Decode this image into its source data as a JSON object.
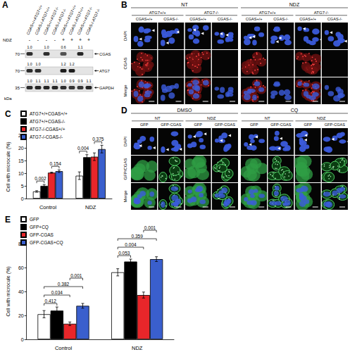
{
  "panels": {
    "A": {
      "label": "A",
      "lanes": [
        "CGAS+/+ATG7+/+",
        "CGAS-/-ATG7+/+",
        "CGAS+/+ATG7-/-",
        "CGAS-/-ATG7-/-",
        "CGAS+/+ATG7+/+",
        "CGAS-/-ATG7+/+",
        "CGAS+/+ATG7-/-",
        "CGAS-/-ATG7-/-"
      ],
      "treatment_label": "NDZ",
      "treatment": [
        "-",
        "-",
        "-",
        "-",
        "+",
        "+",
        "+",
        "+"
      ],
      "kda_label": "kDa",
      "blots": [
        {
          "name": "CGAS",
          "kda": "70",
          "quant": [
            "1.0",
            null,
            "1.0",
            null,
            "0.6",
            null,
            "1.1",
            null
          ]
        },
        {
          "name": "ATG7",
          "kda": "70",
          "quant": [
            "1.0",
            "1.0",
            null,
            null,
            "1.2",
            "1.2",
            null,
            null
          ]
        },
        {
          "name": "GAPDH",
          "kda": "35",
          "quant": [
            "1.0",
            "1.1",
            "1.1",
            "1.1",
            "1.0",
            "0.9",
            "0.9",
            "1.1"
          ]
        }
      ]
    },
    "B": {
      "label": "B",
      "rows": [
        "DAPI",
        "CGAS",
        "Merge"
      ],
      "groups": [
        {
          "title": "NT",
          "subgroups": [
            {
              "title": "ATG7+/+",
              "columns": [
                "CGAS+/+",
                "CGAS-/-"
              ]
            },
            {
              "title": "ATG7-/-",
              "columns": [
                "CGAS+/+",
                "CGAS-/-"
              ]
            }
          ]
        },
        {
          "title": "NDZ",
          "subgroups": [
            {
              "title": "ATG7+/+",
              "columns": [
                "CGAS+/+",
                "CGAS-/-"
              ]
            },
            {
              "title": "ATG7-/-",
              "columns": [
                "CGAS+/+",
                "CGAS-/-"
              ]
            }
          ]
        }
      ]
    },
    "D": {
      "label": "D",
      "rows": [
        "DAPI",
        "GFP/CGAS",
        "Merge"
      ],
      "groups": [
        {
          "title": "DMSO",
          "subgroups": [
            {
              "title": "NT",
              "columns": [
                "GFP",
                "GFP-CGAS"
              ]
            },
            {
              "title": "NDZ",
              "columns": [
                "GFP",
                "GFP-CGAS"
              ]
            }
          ]
        },
        {
          "title": "CQ",
          "subgroups": [
            {
              "title": "NT",
              "columns": [
                "GFP",
                "GFP-CGAS"
              ]
            },
            {
              "title": "NDZ",
              "columns": [
                "GFP",
                "GFP-CGAS"
              ]
            }
          ]
        }
      ]
    }
  },
  "chart_data": [
    {
      "type": "bar",
      "title": "C",
      "y_label": "Cell with microcule (%)",
      "categories": [
        "Control",
        "NDZ"
      ],
      "ylim": [
        0,
        25
      ],
      "yticks": [
        0,
        5,
        10,
        15,
        20,
        25
      ],
      "grid": false,
      "legend": "top-left",
      "series": [
        {
          "name": "ATG7+/+CGAS+/+",
          "color": "#ffffff",
          "values": [
            2.8,
            9.0
          ],
          "errors": [
            0.3,
            1.5
          ]
        },
        {
          "name": "ATG7+/+CGAS-/-",
          "color": "#000000",
          "values": [
            5.0,
            16.3
          ],
          "errors": [
            0.5,
            1.0
          ]
        },
        {
          "name": "ATG7-/-CGAS+/+",
          "color": "#e8262a",
          "values": [
            10.2,
            16.5
          ],
          "errors": [
            0.2,
            1.5
          ]
        },
        {
          "name": "ATG7-/-CGAS-/-",
          "color": "#3a5fcd",
          "values": [
            10.8,
            19.5
          ],
          "errors": [
            0.5,
            1.5
          ]
        }
      ],
      "annotations": [
        {
          "text": "0.002",
          "category": "Control",
          "between": [
            "ATG7+/+CGAS+/+",
            "ATG7+/+CGAS-/-"
          ]
        },
        {
          "text": "0.154",
          "category": "Control",
          "between": [
            "ATG7-/-CGAS+/+",
            "ATG7-/-CGAS-/-"
          ]
        },
        {
          "text": "0.004",
          "category": "NDZ",
          "between": [
            "ATG7+/+CGAS+/+",
            "ATG7+/+CGAS-/-"
          ]
        },
        {
          "text": "0.375",
          "category": "NDZ",
          "between": [
            "ATG7-/-CGAS+/+",
            "ATG7-/-CGAS-/-"
          ]
        }
      ]
    },
    {
      "type": "bar",
      "title": "E",
      "y_label": "Cell with microcule (%)",
      "categories": [
        "Control",
        "NDZ"
      ],
      "ylim": [
        0,
        80
      ],
      "yticks": [
        0,
        20,
        40,
        60,
        80
      ],
      "grid": false,
      "legend": "top-left",
      "series": [
        {
          "name": "GFP",
          "color": "#ffffff",
          "values": [
            21,
            56
          ],
          "errors": [
            3,
            3
          ]
        },
        {
          "name": "GFP+CQ",
          "color": "#000000",
          "values": [
            24,
            65
          ],
          "errors": [
            3,
            2
          ]
        },
        {
          "name": "GFP-CGAS",
          "color": "#e8262a",
          "values": [
            13,
            37
          ],
          "errors": [
            1.5,
            2.5
          ]
        },
        {
          "name": "GFP-CGAS+CQ",
          "color": "#3a5fcd",
          "values": [
            28,
            67
          ],
          "errors": [
            2,
            2
          ]
        }
      ],
      "annotations": [
        {
          "text": "0.412",
          "category": "Control",
          "between": [
            "GFP",
            "GFP+CQ"
          ]
        },
        {
          "text": "0.034",
          "category": "Control",
          "between": [
            "GFP",
            "GFP-CGAS"
          ]
        },
        {
          "text": "0.382",
          "category": "Control",
          "between": [
            "GFP",
            "GFP-CGAS+CQ"
          ]
        },
        {
          "text": "0.001",
          "category": "Control",
          "between": [
            "GFP-CGAS",
            "GFP-CGAS+CQ"
          ]
        },
        {
          "text": "0.053",
          "category": "NDZ",
          "between": [
            "GFP",
            "GFP+CQ"
          ]
        },
        {
          "text": "0.004",
          "category": "NDZ",
          "between": [
            "GFP",
            "GFP-CGAS"
          ]
        },
        {
          "text": "0.359",
          "category": "NDZ",
          "between": [
            "GFP",
            "GFP-CGAS+CQ"
          ]
        },
        {
          "text": "0.001",
          "category": "NDZ",
          "between": [
            "GFP-CGAS",
            "GFP-CGAS+CQ"
          ]
        }
      ]
    }
  ]
}
